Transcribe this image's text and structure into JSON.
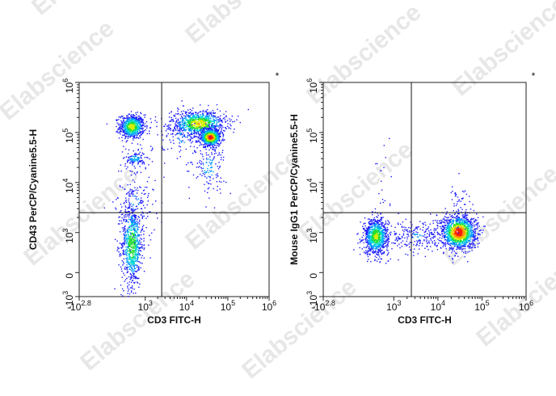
{
  "watermark": "Elabscience",
  "registered_mark": "®",
  "chart_data": [
    {
      "type": "scatter",
      "subtype": "flow-cytometry-density-dot-plot",
      "title": "",
      "corner_mark": "*",
      "xlabel": "CD3 FITC-H",
      "ylabel": "CD43 PerCP/Cyanine5.5-H",
      "x_scale": "biexponential",
      "y_scale": "biexponential",
      "xlim": [
        -631,
        1000000
      ],
      "ylim": [
        -1000,
        1000000
      ],
      "x_ticks": [
        {
          "base": "-10",
          "exp": "2.8",
          "value": -631
        },
        {
          "base": "10",
          "exp": "3",
          "value": 1000
        },
        {
          "base": "10",
          "exp": "4",
          "value": 10000
        },
        {
          "base": "10",
          "exp": "5",
          "value": 100000
        },
        {
          "base": "10",
          "exp": "6",
          "value": 1000000
        }
      ],
      "y_ticks": [
        {
          "base": "-10",
          "exp": "3",
          "value": -1000
        },
        {
          "base": "0",
          "exp": "",
          "value": 0
        },
        {
          "base": "10",
          "exp": "3",
          "value": 1000
        },
        {
          "base": "10",
          "exp": "4",
          "value": 10000
        },
        {
          "base": "10",
          "exp": "5",
          "value": 100000
        },
        {
          "base": "10",
          "exp": "6",
          "value": 1000000
        }
      ],
      "gates": {
        "x": 2500,
        "y": 2500
      },
      "populations": [
        {
          "x": 600,
          "y": 130000,
          "sx": 0.15,
          "sy": 0.12,
          "n": 700,
          "peak": 0.7
        },
        {
          "x": 600,
          "y": 700,
          "sx": 0.13,
          "sy": 0.42,
          "n": 750,
          "peak": 0.6
        },
        {
          "x": 700,
          "y": 30000,
          "sx": 0.12,
          "sy": 0.07,
          "n": 110,
          "peak": 0.35
        },
        {
          "x": 700,
          "y": 4000,
          "sx": 0.25,
          "sy": 0.45,
          "n": 180,
          "peak": 0.2
        },
        {
          "x": 20000,
          "y": 150000,
          "sx": 0.33,
          "sy": 0.13,
          "n": 900,
          "peak": 0.75
        },
        {
          "x": 38000,
          "y": 80000,
          "sx": 0.13,
          "sy": 0.09,
          "n": 700,
          "peak": 1.0
        },
        {
          "x": 35000,
          "y": 20000,
          "sx": 0.2,
          "sy": 0.25,
          "n": 130,
          "peak": 0.25
        },
        {
          "x": 8000,
          "y": 80000,
          "sx": 0.35,
          "sy": 0.3,
          "n": 120,
          "peak": 0.2
        }
      ]
    },
    {
      "type": "scatter",
      "subtype": "flow-cytometry-density-dot-plot",
      "title": "",
      "corner_mark": "*",
      "xlabel": "CD3 FITC-H",
      "ylabel": "Mouse IgG1 PerCP/Cyanine5.5-H",
      "x_scale": "biexponential",
      "y_scale": "biexponential",
      "xlim": [
        -631,
        1000000
      ],
      "ylim": [
        -1000,
        1000000
      ],
      "x_ticks": [
        {
          "base": "-10",
          "exp": "2.8",
          "value": -631
        },
        {
          "base": "10",
          "exp": "3",
          "value": 1000
        },
        {
          "base": "10",
          "exp": "4",
          "value": 10000
        },
        {
          "base": "10",
          "exp": "5",
          "value": 100000
        },
        {
          "base": "10",
          "exp": "6",
          "value": 1000000
        }
      ],
      "y_ticks": [
        {
          "base": "-10",
          "exp": "3",
          "value": -1000
        },
        {
          "base": "0",
          "exp": "",
          "value": 0
        },
        {
          "base": "10",
          "exp": "3",
          "value": 1000
        },
        {
          "base": "10",
          "exp": "4",
          "value": 10000
        },
        {
          "base": "10",
          "exp": "5",
          "value": 100000
        },
        {
          "base": "10",
          "exp": "6",
          "value": 1000000
        }
      ],
      "gates": {
        "x": 2500,
        "y": 2500
      },
      "populations": [
        {
          "x": 500,
          "y": 900,
          "sx": 0.14,
          "sy": 0.18,
          "n": 900,
          "peak": 0.65
        },
        {
          "x": 30000,
          "y": 1000,
          "sx": 0.2,
          "sy": 0.17,
          "n": 1300,
          "peak": 1.0
        },
        {
          "x": 3500,
          "y": 900,
          "sx": 0.3,
          "sy": 0.18,
          "n": 220,
          "peak": 0.2
        },
        {
          "x": 30000,
          "y": 3000,
          "sx": 0.15,
          "sy": 0.25,
          "n": 70,
          "peak": 0.15
        },
        {
          "x": 700,
          "y": 10000,
          "sx": 0.1,
          "sy": 0.5,
          "n": 18,
          "peak": 0.05
        }
      ]
    }
  ]
}
